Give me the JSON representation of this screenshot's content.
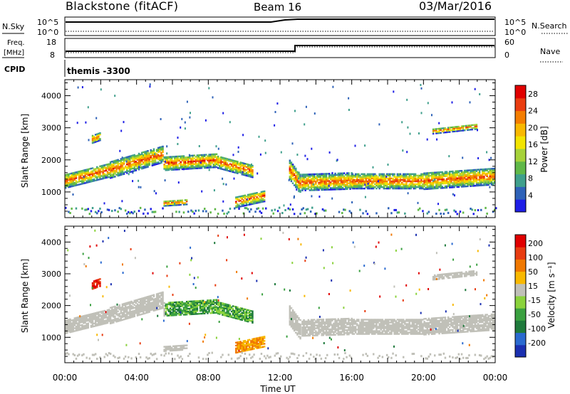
{
  "header": {
    "title": "Blackstone (fitACF)",
    "beam": "Beam 16",
    "date": "03/Mar/2016"
  },
  "panels": {
    "nsky": {
      "label": "N.Sky",
      "ticks": [
        "10^5",
        "10^0"
      ]
    },
    "nsearch": {
      "label": "N.Search",
      "ticks": [
        "10^5",
        "10^0"
      ]
    },
    "freq": {
      "label_line1": "Freq.",
      "label_line2": "[MHz]",
      "ticks": [
        "18",
        "8"
      ]
    },
    "nave": {
      "label": "Nave",
      "ticks": [
        "60",
        "0"
      ]
    },
    "cpid": {
      "label": "CPID",
      "value": "themis -3300"
    }
  },
  "chart_data": [
    {
      "type": "heatmap",
      "name": "Power",
      "ylabel": "Slant Range [km]",
      "xlabel": "",
      "yticks": [
        1000,
        2000,
        3000,
        4000
      ],
      "ylim": [
        200,
        4500
      ],
      "xlim": [
        0,
        24
      ],
      "colorbar": {
        "label": "Power [dB]",
        "ticks": [
          "4",
          "8",
          "12",
          "16",
          "20",
          "24",
          "28"
        ],
        "colors": [
          "#1e1ee6",
          "#2e62b8",
          "#3f9f8c",
          "#60b848",
          "#a6d23a",
          "#f2e400",
          "#f8b800",
          "#f47d00",
          "#ea3d10",
          "#e00000"
        ]
      }
    },
    {
      "type": "heatmap",
      "name": "Velocity",
      "ylabel": "Slant Range [km]",
      "xlabel": "Time UT",
      "yticks": [
        1000,
        2000,
        3000,
        4000
      ],
      "ylim": [
        200,
        4500
      ],
      "xlim": [
        0,
        24
      ],
      "xticks": [
        "00:00",
        "04:00",
        "08:00",
        "12:00",
        "16:00",
        "20:00",
        "00:00"
      ],
      "colorbar": {
        "label": "Velocity [m s⁻¹]",
        "ticks": [
          "200",
          "100",
          "50",
          "15",
          "-15",
          "-50",
          "-100",
          "-200"
        ],
        "colors": [
          "#1a2fb0",
          "#2a6ad0",
          "#1f7a3c",
          "#3aa040",
          "#8ad23c",
          "#c0c0b8",
          "#f8b800",
          "#f07800",
          "#e83c10",
          "#e00000"
        ]
      }
    }
  ]
}
